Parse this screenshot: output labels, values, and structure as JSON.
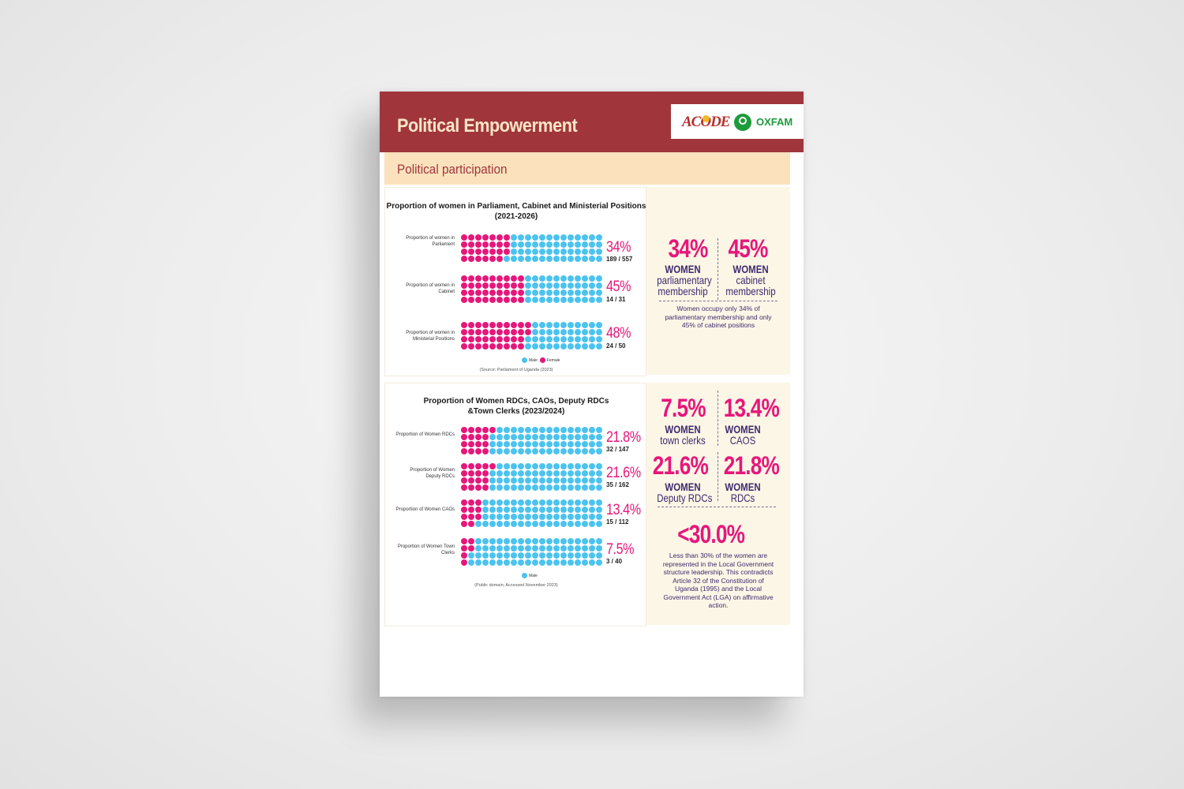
{
  "header": {
    "title": "Political Empowerment",
    "logo_left": "ACODE",
    "logo_right": "OXFAM"
  },
  "subheader": {
    "title": "Political participation"
  },
  "colors": {
    "female": "#e6177b",
    "male": "#4cc3ef",
    "header_bg": "#a0363b"
  },
  "legend": {
    "male": "Male",
    "female": "Female"
  },
  "chart1": {
    "title": "Proportion of women in Parliament, Cabinet and Ministerial Positions (2021-2026)",
    "source": "(Source: Parliament of Uganda (2023)",
    "rows": [
      {
        "label": "Proportion of women in Parliament",
        "pct": "34%",
        "frac": "189 / 557",
        "female_share": 0.34
      },
      {
        "label": "Proportion of women in Cabinet",
        "pct": "45%",
        "frac": "14 / 31",
        "female_share": 0.45
      },
      {
        "label": "Proportion of women in Ministerial Positions",
        "pct": "48%",
        "frac": "24 / 50",
        "female_share": 0.48
      }
    ]
  },
  "chart2": {
    "title": "Proportion of Women RDCs, CAOs, Deputy RDCs &Town Clerks (2023/2024)",
    "source": "(Public domain; Accessed November 2023)",
    "rows": [
      {
        "label": "Proportion of Women RDCs",
        "pct": "21.8%",
        "frac": "32 / 147",
        "female_share": 0.218
      },
      {
        "label": "Proportion of Women Deputy RDCs",
        "pct": "21.6%",
        "frac": "35 / 162",
        "female_share": 0.216
      },
      {
        "label": "Proportion of Women CAOs",
        "pct": "13.4%",
        "frac": "15 / 112",
        "female_share": 0.134
      },
      {
        "label": "Proportion of Women Town Clerks",
        "pct": "7.5%",
        "frac": "3 / 40",
        "female_share": 0.075
      }
    ]
  },
  "stats1": {
    "a_pct": "34%",
    "a_l1": "WOMEN",
    "a_l2": "parliamentary",
    "a_l3": "membership",
    "b_pct": "45%",
    "b_l1": "WOMEN",
    "b_l2": "cabinet",
    "b_l3": "membership",
    "note": "Women occupy only 34% of parliamentary membership and only 45% of cabinet positions"
  },
  "stats2": {
    "a_pct": "7.5%",
    "a_l1": "WOMEN",
    "a_l2": "town clerks",
    "b_pct": "13.4%",
    "b_l1": "WOMEN",
    "b_l2": "CAOS",
    "c_pct": "21.6%",
    "c_l1": "WOMEN",
    "c_l2": "Deputy RDCs",
    "d_pct": "21.8%",
    "d_l1": "WOMEN",
    "d_l2": "RDCs",
    "big": "<30.0%",
    "note": "Less than 30% of the women are represented in the Local Government structure leadership. This contradicts Article 32 of the Constitution of Uganda (1995) and the Local Government Act (LGA) on affirmative action."
  }
}
